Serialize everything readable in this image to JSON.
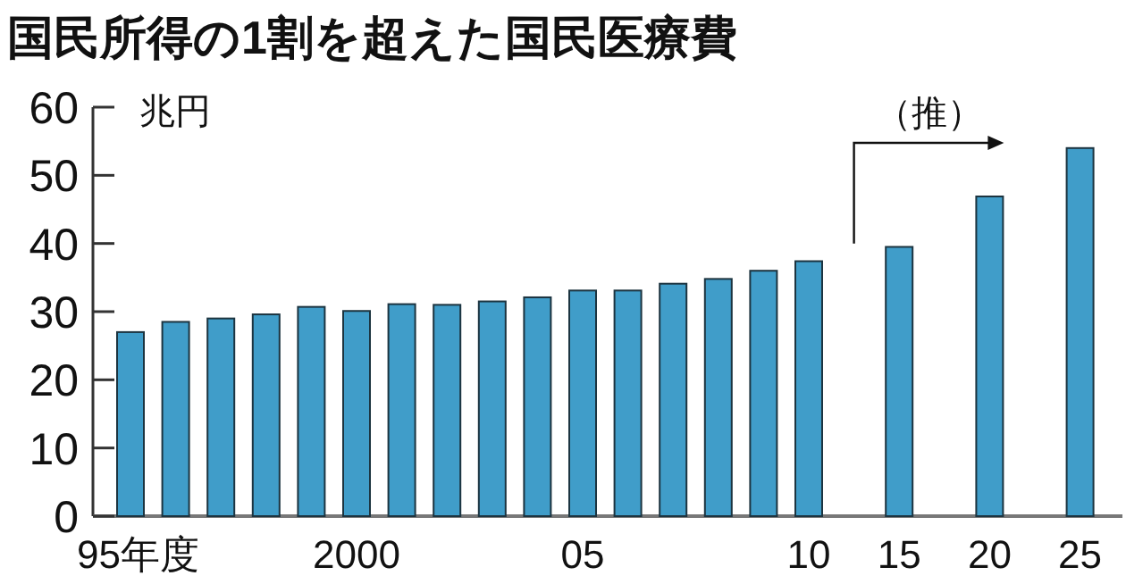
{
  "chart_data": {
    "type": "bar",
    "title": "国民所得の1割を超えた国民医療費",
    "ylabel": "兆円",
    "categories": [
      "95年度",
      null,
      null,
      null,
      null,
      "2000",
      null,
      null,
      null,
      null,
      "05",
      null,
      null,
      null,
      null,
      "10",
      null,
      "15",
      null,
      "20",
      null,
      "25"
    ],
    "values": [
      27.0,
      28.5,
      29.0,
      29.6,
      30.7,
      30.1,
      31.1,
      31.0,
      31.5,
      32.1,
      33.1,
      33.1,
      34.1,
      34.8,
      36.0,
      37.4,
      null,
      39.5,
      null,
      46.9,
      null,
      54.0
    ],
    "color": "#409dc9",
    "ylim": [
      0,
      60
    ],
    "yticks": [
      0,
      10,
      20,
      30,
      40,
      50,
      60
    ],
    "annotations": [
      "（推）"
    ]
  }
}
